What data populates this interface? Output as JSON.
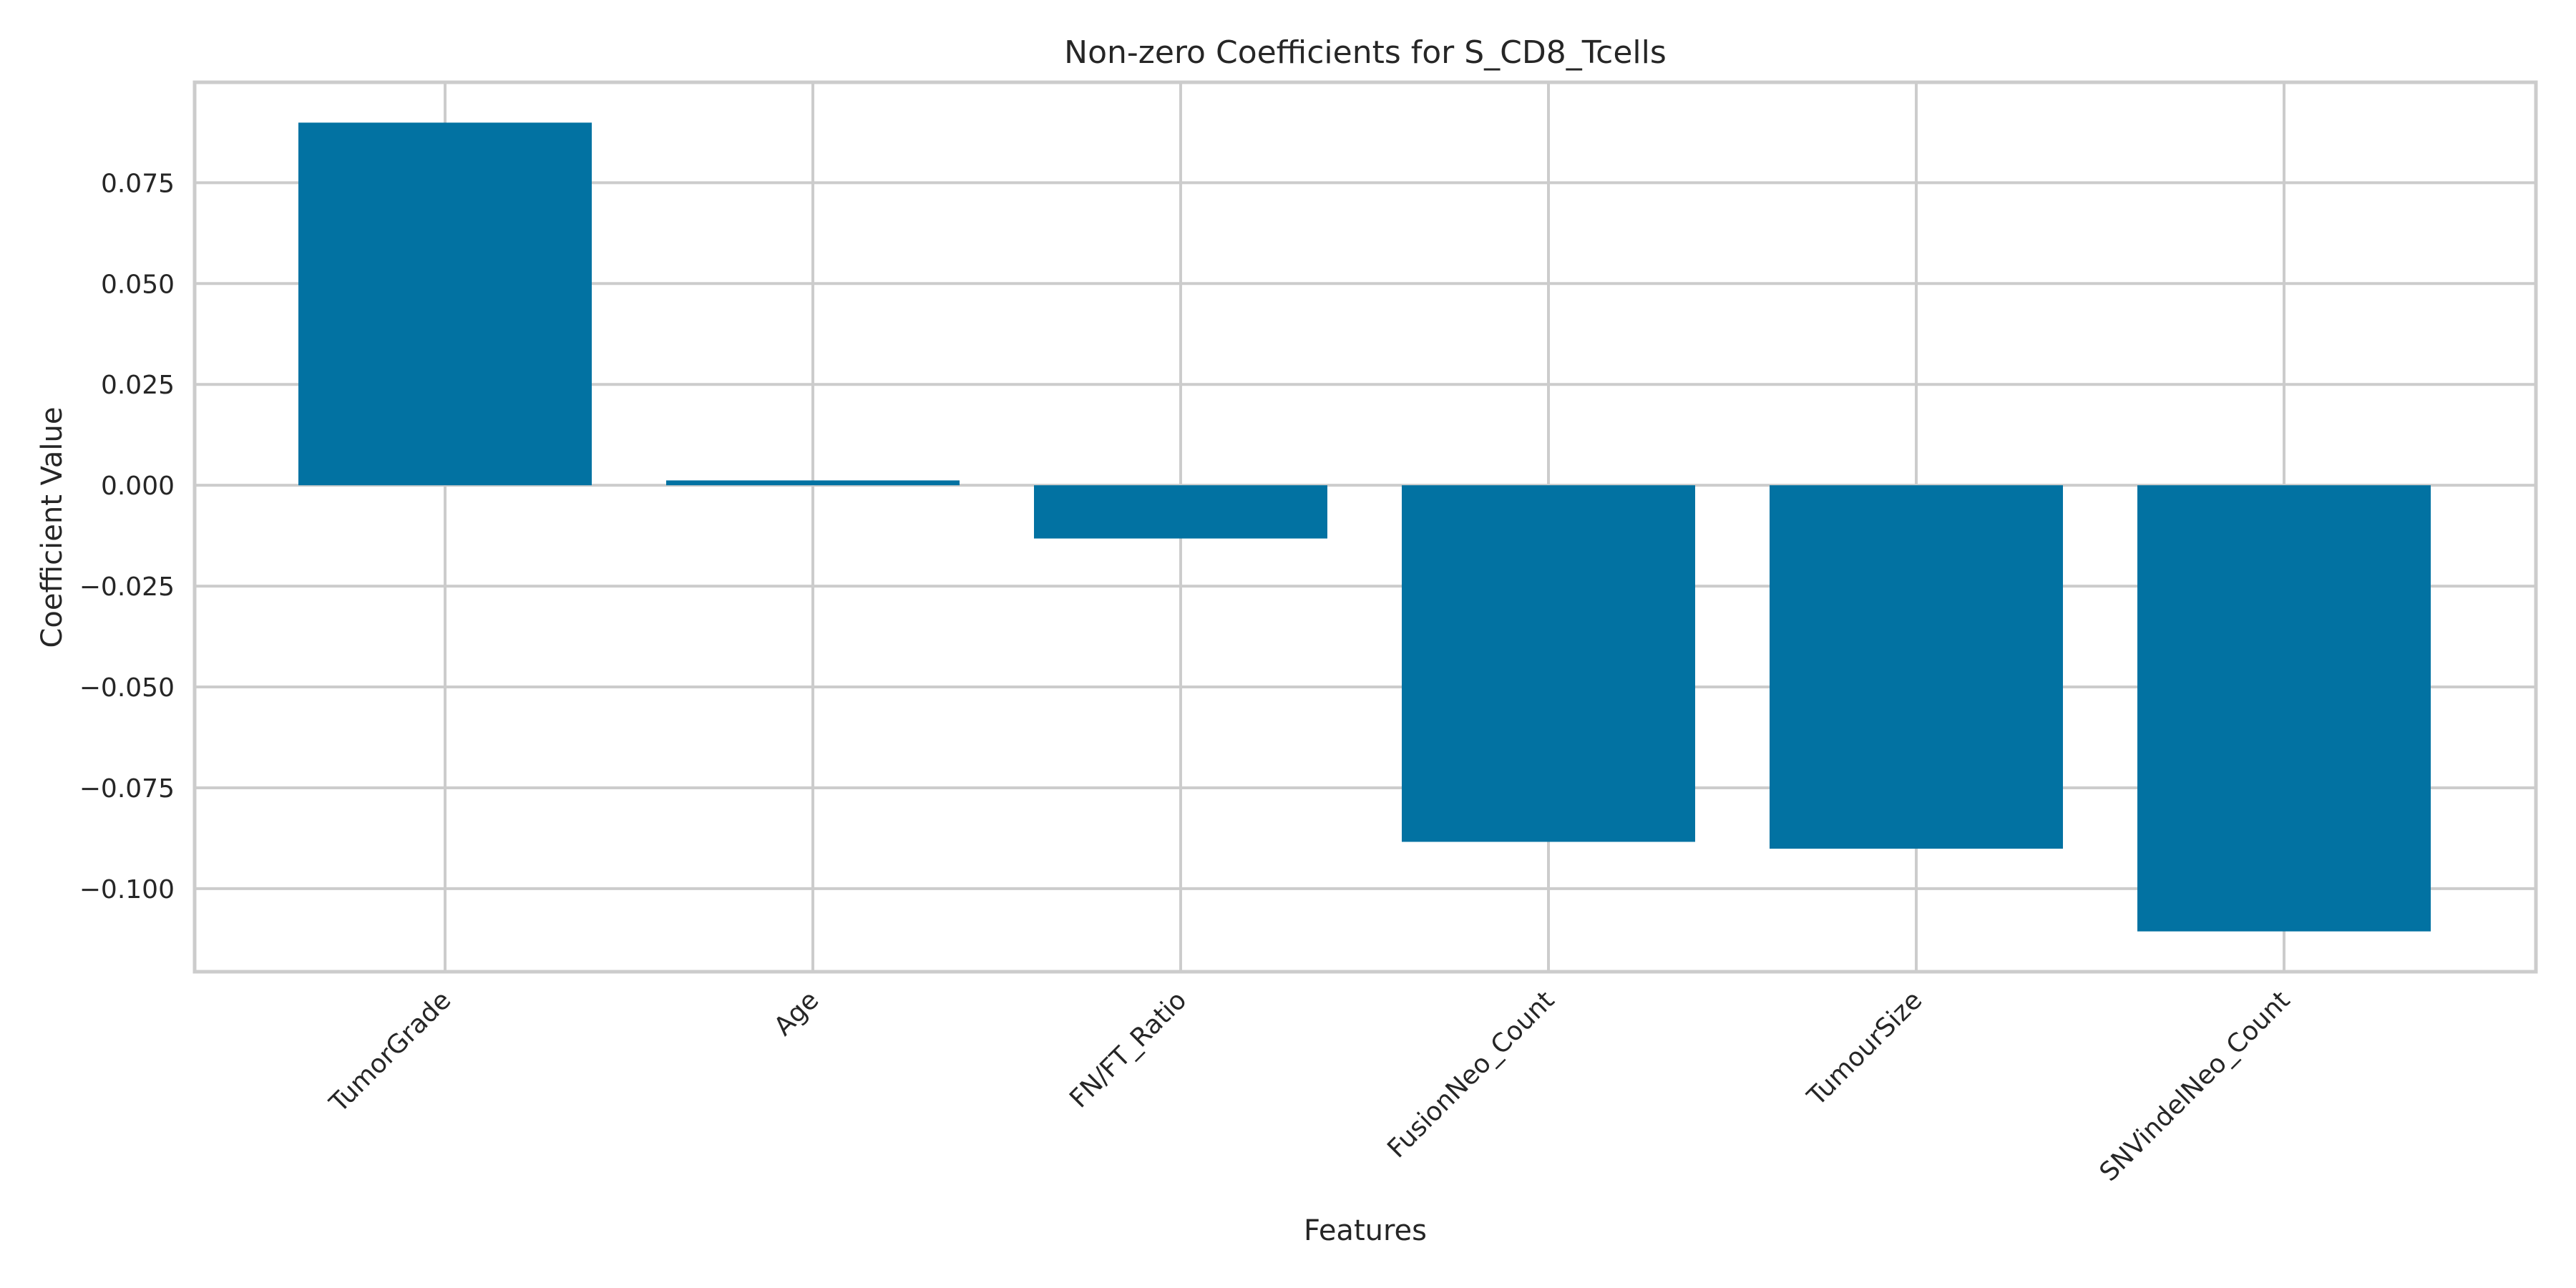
{
  "chart_data": {
    "type": "bar",
    "title": "Non-zero Coefficients for S_CD8_Tcells",
    "xlabel": "Features",
    "ylabel": "Coefficient Value",
    "categories": [
      "TumorGrade",
      "Age",
      "FN/FT_Ratio",
      "FusionNeo_Count",
      "TumourSize",
      "SNVindelNeo_Count"
    ],
    "values": [
      0.0899,
      0.0012,
      -0.0132,
      -0.0884,
      -0.0901,
      -0.1106
    ],
    "ylim": [
      -0.1206,
      0.0999
    ],
    "yticks": [
      0.075,
      0.05,
      0.025,
      0.0,
      -0.025,
      -0.05,
      -0.075,
      -0.1
    ],
    "ytick_labels": [
      "0.075",
      "0.050",
      "0.025",
      "0.000",
      "−0.025",
      "−0.050",
      "−0.075",
      "−0.100"
    ],
    "grid": true,
    "bar_color": "#0272a2",
    "grid_color": "#cccccc",
    "text_color": "#262626"
  }
}
